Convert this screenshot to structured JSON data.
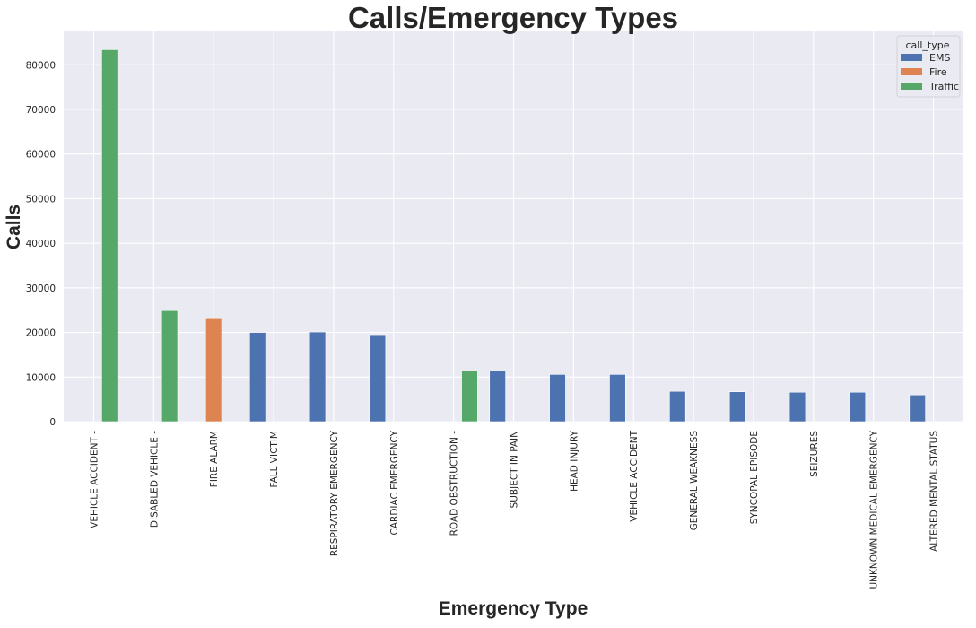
{
  "colors": {
    "EMS": "#4c72b0",
    "Fire": "#dd8452",
    "Traffic": "#55a868",
    "background": "#eaeaf2",
    "grid": "#ffffff"
  },
  "chart_data": {
    "type": "bar",
    "title": "Calls/Emergency Types",
    "xlabel": "Emergency Type",
    "ylabel": "Calls",
    "ylim": [
      0,
      87500
    ],
    "yticks": [
      0,
      10000,
      20000,
      30000,
      40000,
      50000,
      60000,
      70000,
      80000
    ],
    "grid": true,
    "legend": {
      "title": "call_type",
      "placement": "top-right"
    },
    "categories": [
      "VEHICLE ACCIDENT -",
      "DISABLED VEHICLE -",
      "FIRE ALARM",
      "FALL VICTIM",
      "RESPIRATORY EMERGENCY",
      "CARDIAC EMERGENCY",
      "ROAD OBSTRUCTION -",
      "SUBJECT IN PAIN",
      "HEAD INJURY",
      "VEHICLE ACCIDENT",
      "GENERAL WEAKNESS",
      "SYNCOPAL EPISODE",
      "SEIZURES",
      "UNKNOWN MEDICAL EMERGENCY",
      "ALTERED MENTAL STATUS"
    ],
    "series": [
      {
        "name": "EMS",
        "values": [
          null,
          null,
          null,
          20000,
          20100,
          19500,
          null,
          11400,
          10600,
          10600,
          6800,
          6700,
          6600,
          6600,
          6000
        ]
      },
      {
        "name": "Fire",
        "values": [
          null,
          null,
          23100,
          null,
          null,
          null,
          null,
          null,
          null,
          null,
          null,
          null,
          null,
          null,
          null
        ]
      },
      {
        "name": "Traffic",
        "values": [
          83400,
          24900,
          null,
          null,
          null,
          null,
          11400,
          null,
          null,
          null,
          null,
          null,
          null,
          null,
          null
        ]
      }
    ]
  }
}
